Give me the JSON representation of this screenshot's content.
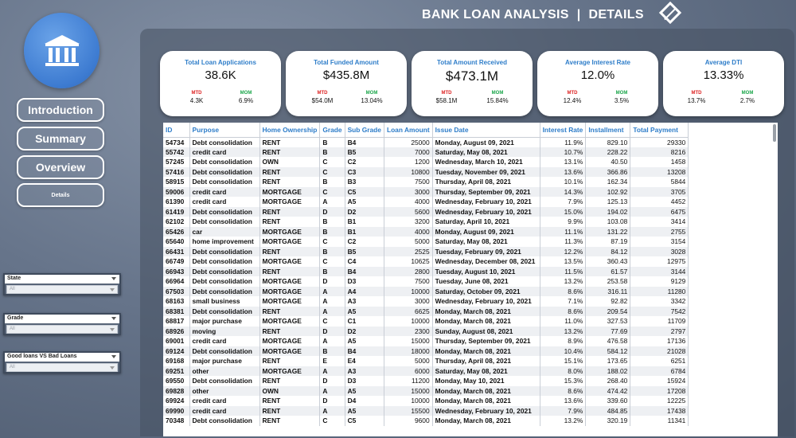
{
  "header": {
    "title": "BANK LOAN ANALYSIS",
    "separator": "|",
    "page": "DETAILS"
  },
  "nav": [
    {
      "label": "Introduction"
    },
    {
      "label": "Summary"
    },
    {
      "label": "Overview"
    },
    {
      "label": "Details"
    }
  ],
  "slicers": [
    {
      "title": "State",
      "value": "All"
    },
    {
      "title": "Grade",
      "value": "All"
    },
    {
      "title": "Good loans VS Bad Loans",
      "value": "All"
    }
  ],
  "kpis": [
    {
      "title": "Total Loan Applications",
      "value": "38.6K",
      "mtd_label": "MTD",
      "mtd": "4.3K",
      "mom_label": "MOM",
      "mom": "6.9%"
    },
    {
      "title": "Total Funded Amount",
      "value": "$435.8M",
      "mtd_label": "MTD",
      "mtd": "$54.0M",
      "mom_label": "MOM",
      "mom": "13.04%"
    },
    {
      "title": "Total Amount Received",
      "value": "$473.1M",
      "mtd_label": "MTD",
      "mtd": "$58.1M",
      "mom_label": "MOM",
      "mom": "15.84%"
    },
    {
      "title": "Average Interest Rate",
      "value": "12.0%",
      "mtd_label": "MTD",
      "mtd": "12.4%",
      "mom_label": "MOM",
      "mom": "3.5%"
    },
    {
      "title": "Average DTI",
      "value": "13.33%",
      "mtd_label": "MTD",
      "mtd": "13.7%",
      "mom_label": "MOM",
      "mom": "2.7%"
    }
  ],
  "table": {
    "columns": [
      "ID",
      "Purpose",
      "Home Ownership",
      "Grade",
      "Sub Grade",
      "Loan Amount",
      "Issue Date",
      "Interest Rate",
      "Installment",
      "Total Payment"
    ],
    "rows": [
      [
        "54734",
        "Debt consolidation",
        "RENT",
        "B",
        "B4",
        "25000",
        "Monday, August 09, 2021",
        "11.9%",
        "829.10",
        "29330"
      ],
      [
        "55742",
        "credit card",
        "RENT",
        "B",
        "B5",
        "7000",
        "Saturday, May 08, 2021",
        "10.7%",
        "228.22",
        "8216"
      ],
      [
        "57245",
        "Debt consolidation",
        "OWN",
        "C",
        "C2",
        "1200",
        "Wednesday, March 10, 2021",
        "13.1%",
        "40.50",
        "1458"
      ],
      [
        "57416",
        "Debt consolidation",
        "RENT",
        "C",
        "C3",
        "10800",
        "Tuesday, November 09, 2021",
        "13.6%",
        "366.86",
        "13208"
      ],
      [
        "58915",
        "Debt consolidation",
        "RENT",
        "B",
        "B3",
        "7500",
        "Thursday, April 08, 2021",
        "10.1%",
        "162.34",
        "5844"
      ],
      [
        "59006",
        "credit card",
        "MORTGAGE",
        "C",
        "C5",
        "3000",
        "Thursday, September 09, 2021",
        "14.3%",
        "102.92",
        "3705"
      ],
      [
        "61390",
        "credit card",
        "MORTGAGE",
        "A",
        "A5",
        "4000",
        "Wednesday, February 10, 2021",
        "7.9%",
        "125.13",
        "4452"
      ],
      [
        "61419",
        "Debt consolidation",
        "RENT",
        "D",
        "D2",
        "5600",
        "Wednesday, February 10, 2021",
        "15.0%",
        "194.02",
        "6475"
      ],
      [
        "62102",
        "Debt consolidation",
        "RENT",
        "B",
        "B1",
        "3200",
        "Saturday, April 10, 2021",
        "9.9%",
        "103.08",
        "3414"
      ],
      [
        "65426",
        "car",
        "MORTGAGE",
        "B",
        "B1",
        "4000",
        "Monday, August 09, 2021",
        "11.1%",
        "131.22",
        "2755"
      ],
      [
        "65640",
        "home improvement",
        "MORTGAGE",
        "C",
        "C2",
        "5000",
        "Saturday, May 08, 2021",
        "11.3%",
        "87.19",
        "3154"
      ],
      [
        "66431",
        "Debt consolidation",
        "RENT",
        "B",
        "B5",
        "2525",
        "Tuesday, February 09, 2021",
        "12.2%",
        "84.12",
        "3028"
      ],
      [
        "66749",
        "Debt consolidation",
        "MORTGAGE",
        "C",
        "C4",
        "10625",
        "Wednesday, December 08, 2021",
        "13.5%",
        "360.43",
        "12975"
      ],
      [
        "66943",
        "Debt consolidation",
        "RENT",
        "B",
        "B4",
        "2800",
        "Tuesday, August 10, 2021",
        "11.5%",
        "61.57",
        "3144"
      ],
      [
        "66964",
        "Debt consolidation",
        "MORTGAGE",
        "D",
        "D3",
        "7500",
        "Tuesday, June 08, 2021",
        "13.2%",
        "253.58",
        "9129"
      ],
      [
        "67503",
        "Debt consolidation",
        "MORTGAGE",
        "A",
        "A4",
        "10000",
        "Saturday, October 09, 2021",
        "8.6%",
        "316.11",
        "11280"
      ],
      [
        "68163",
        "small business",
        "MORTGAGE",
        "A",
        "A3",
        "3000",
        "Wednesday, February 10, 2021",
        "7.1%",
        "92.82",
        "3342"
      ],
      [
        "68381",
        "Debt consolidation",
        "RENT",
        "A",
        "A5",
        "6625",
        "Monday, March 08, 2021",
        "8.6%",
        "209.54",
        "7542"
      ],
      [
        "68817",
        "major purchase",
        "MORTGAGE",
        "C",
        "C1",
        "10000",
        "Monday, March 08, 2021",
        "11.0%",
        "327.53",
        "11709"
      ],
      [
        "68926",
        "moving",
        "RENT",
        "D",
        "D2",
        "2300",
        "Sunday, August 08, 2021",
        "13.2%",
        "77.69",
        "2797"
      ],
      [
        "69001",
        "credit card",
        "MORTGAGE",
        "A",
        "A5",
        "15000",
        "Thursday, September 09, 2021",
        "8.9%",
        "476.58",
        "17136"
      ],
      [
        "69124",
        "Debt consolidation",
        "MORTGAGE",
        "B",
        "B4",
        "18000",
        "Monday, March 08, 2021",
        "10.4%",
        "584.12",
        "21028"
      ],
      [
        "69168",
        "major purchase",
        "RENT",
        "E",
        "E4",
        "5000",
        "Thursday, April 08, 2021",
        "15.1%",
        "173.65",
        "6251"
      ],
      [
        "69251",
        "other",
        "MORTGAGE",
        "A",
        "A3",
        "6000",
        "Saturday, May 08, 2021",
        "8.0%",
        "188.02",
        "6784"
      ],
      [
        "69550",
        "Debt consolidation",
        "RENT",
        "D",
        "D3",
        "11200",
        "Monday, May 10, 2021",
        "15.3%",
        "268.40",
        "15924"
      ],
      [
        "69828",
        "other",
        "OWN",
        "A",
        "A5",
        "15000",
        "Monday, March 08, 2021",
        "8.6%",
        "474.42",
        "17208"
      ],
      [
        "69924",
        "credit card",
        "RENT",
        "D",
        "D4",
        "10000",
        "Monday, March 08, 2021",
        "13.6%",
        "339.60",
        "12225"
      ],
      [
        "69990",
        "credit card",
        "RENT",
        "A",
        "A5",
        "15500",
        "Wednesday, February 10, 2021",
        "7.9%",
        "484.85",
        "17438"
      ],
      [
        "70348",
        "Debt consolidation",
        "RENT",
        "C",
        "C5",
        "9600",
        "Monday, March 08, 2021",
        "13.2%",
        "320.19",
        "11341"
      ]
    ]
  },
  "icons": {
    "logo": "bank-icon",
    "header": "eraser-icon"
  },
  "colors": {
    "accent": "#2e7dc9",
    "mtd": "#dd2222",
    "mom": "#1aa64a",
    "logo": "#3d7bd1"
  }
}
